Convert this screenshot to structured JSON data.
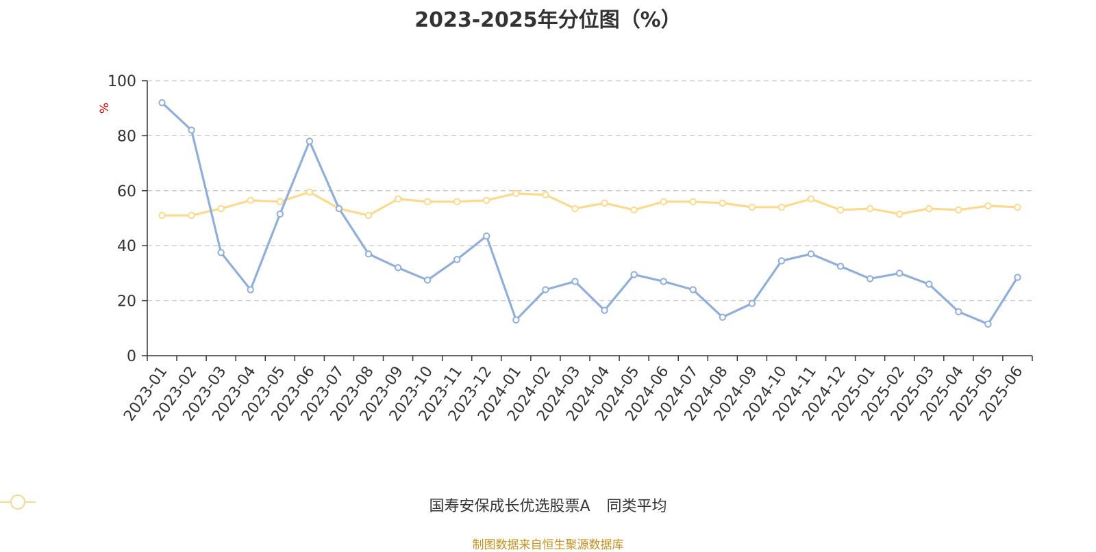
{
  "title": "2023-2025年分位图（%）",
  "source": "制图数据来自恒生聚源数据库",
  "chart_data": {
    "type": "line",
    "title": "2023-2025年分位图（%）",
    "ylabel": "%",
    "ylim": [
      0,
      100
    ],
    "yticks": [
      0,
      20,
      40,
      60,
      80,
      100
    ],
    "grid": true,
    "legend_position": "bottom",
    "categories": [
      "2023-01",
      "2023-02",
      "2023-03",
      "2023-04",
      "2023-05",
      "2023-06",
      "2023-07",
      "2023-08",
      "2023-09",
      "2023-10",
      "2023-11",
      "2023-12",
      "2024-01",
      "2024-02",
      "2024-03",
      "2024-04",
      "2024-05",
      "2024-06",
      "2024-07",
      "2024-08",
      "2024-09",
      "2024-10",
      "2024-11",
      "2024-12",
      "2025-01",
      "2025-02",
      "2025-03",
      "2025-04",
      "2025-05",
      "2025-06"
    ],
    "series": [
      {
        "name": "国寿安保成长优选股票A",
        "color": "#8eaedb",
        "values": [
          92,
          82,
          37.5,
          24,
          51.5,
          78,
          53.5,
          37,
          32,
          27.5,
          35,
          43.5,
          13,
          24,
          27,
          16.5,
          29.5,
          27,
          24,
          14,
          19,
          34.5,
          37,
          32.5,
          28,
          30,
          26,
          16,
          11.5,
          28.5
        ]
      },
      {
        "name": "同类平均",
        "color": "#fdd98c",
        "values": [
          51,
          51,
          53.5,
          56.5,
          56,
          59.5,
          53.5,
          51,
          57,
          56,
          56,
          56.5,
          59,
          58.5,
          53.5,
          55.5,
          53,
          56,
          56,
          55.5,
          54,
          54,
          57,
          53,
          53.5,
          51.5,
          53.5,
          53,
          54.5,
          54
        ]
      }
    ]
  }
}
